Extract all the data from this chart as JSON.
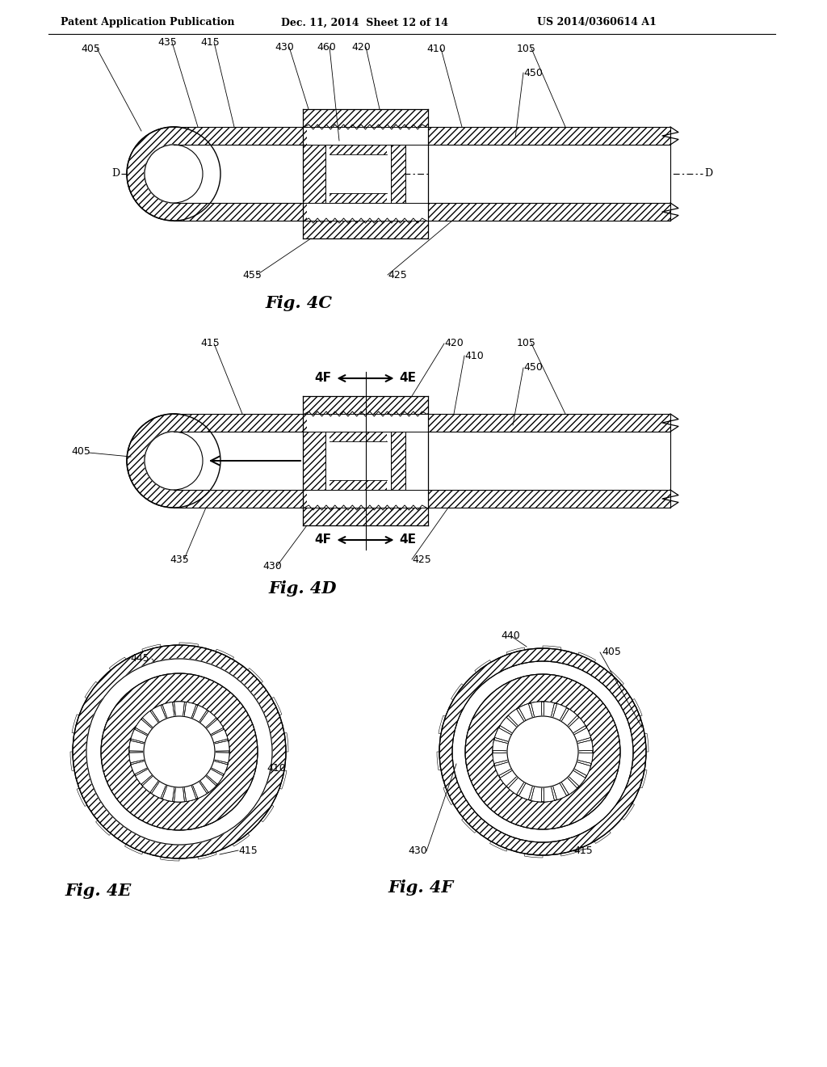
{
  "header_left": "Patent Application Publication",
  "header_center": "Dec. 11, 2014  Sheet 12 of 14",
  "header_right": "US 2014/0360614 A1",
  "fig4c_label": "Fig. 4C",
  "fig4d_label": "Fig. 4D",
  "fig4e_label": "Fig. 4E",
  "fig4f_label": "Fig. 4F",
  "bg_color": "#ffffff",
  "line_color": "#000000",
  "label_fontsize": 9,
  "fig_label_fontsize": 15
}
